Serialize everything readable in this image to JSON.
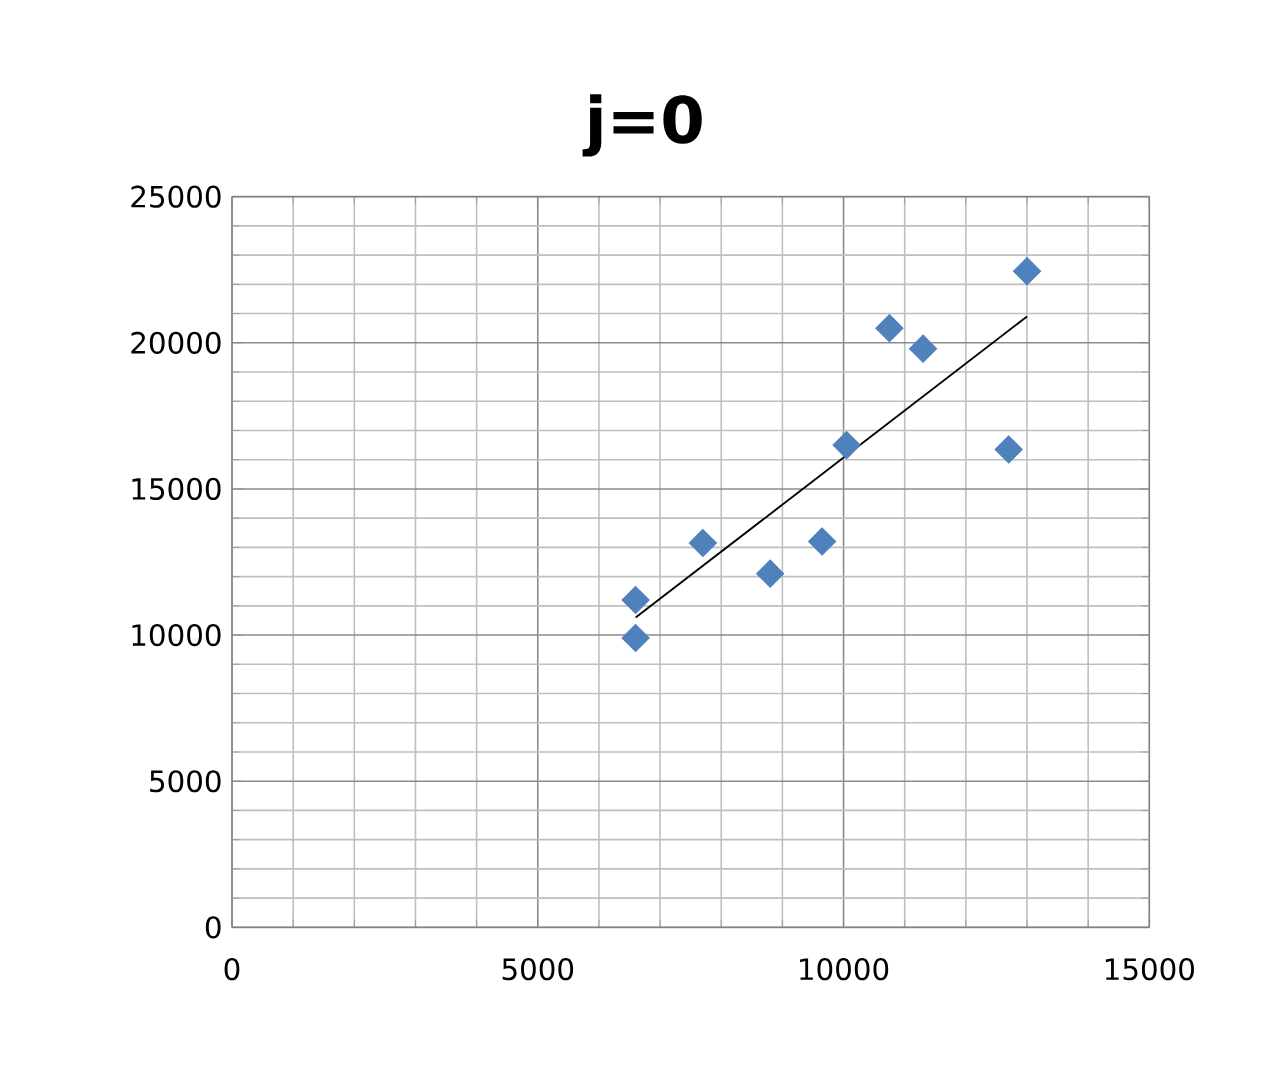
{
  "chart_data": {
    "type": "scatter",
    "title": "j=0",
    "xlim": [
      0,
      15000
    ],
    "xticks": [
      0,
      5000,
      10000,
      15000
    ],
    "ylim": [
      0,
      25000
    ],
    "yticks": [
      0,
      5000,
      10000,
      15000,
      20000,
      25000
    ],
    "grid": true,
    "series": [
      {
        "marker": "diamond",
        "color": "#4f81bd",
        "x": [
          6600,
          6600,
          7700,
          8800,
          9650,
          10050,
          10750,
          11300,
          12700,
          13000
        ],
        "values": [
          11200,
          9900,
          13150,
          12100,
          13200,
          16500,
          20500,
          19800,
          16350,
          22450
        ]
      },
      {
        "type": "line",
        "marker": "none",
        "color": "#000000",
        "x": [
          6600,
          13000
        ],
        "values": [
          10600,
          20900
        ]
      }
    ]
  }
}
